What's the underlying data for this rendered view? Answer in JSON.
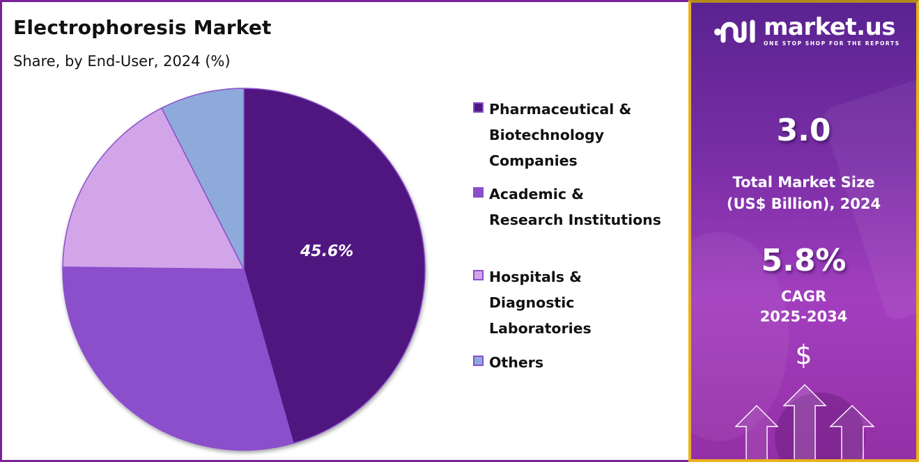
{
  "header": {
    "title": "Electrophoresis Market",
    "subtitle": "Share, by End-User, 2024 (%)"
  },
  "chart_data": {
    "type": "pie",
    "title": "Electrophoresis Market",
    "subtitle": "Share, by End-User, 2024 (%)",
    "categories": [
      "Pharmaceutical & Biotechnology Companies",
      "Academic & Research Institutions",
      "Hospitals & Diagnostic Laboratories",
      "Others"
    ],
    "values": [
      45.6,
      29.6,
      17.3,
      7.5
    ],
    "colors": [
      "#4f1780",
      "#8b4fcc",
      "#d2a5e9",
      "#8eaadb"
    ],
    "data_labels": [
      "45.6%",
      "",
      "",
      ""
    ],
    "start_angle_deg": 0,
    "direction": "clockwise",
    "legend_position": "right"
  },
  "pie": {
    "label_main": "45.6%"
  },
  "legend": {
    "items": [
      {
        "label": "Pharmaceutical &\nBiotechnology\nCompanies",
        "color": "#4f1780"
      },
      {
        "label": "Academic &\nResearch Institutions",
        "color": "#8b4fcc"
      },
      {
        "label": "Hospitals &\nDiagnostic\nLaboratories",
        "color": "#d2a5e9"
      },
      {
        "label": "Others",
        "color": "#8eaadb"
      }
    ]
  },
  "sidebar": {
    "brand": "market.us",
    "tagline": "ONE STOP SHOP FOR THE REPORTS",
    "market_size_value": "3.0",
    "market_size_label_1": "Total Market Size",
    "market_size_label_2": "(US$ Billion), 2024",
    "cagr_value": "5.8%",
    "cagr_label_1": "CAGR",
    "cagr_label_2": "2025-2034",
    "currency_symbol": "$",
    "colors": {
      "border": "#e8b21e",
      "panel_top": "#5a2391",
      "panel_bottom": "#a33fbf"
    }
  }
}
